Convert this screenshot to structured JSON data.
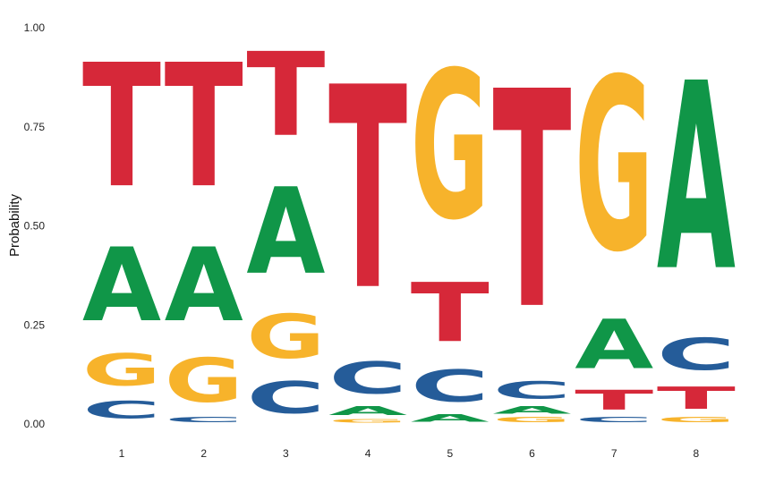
{
  "chart_data": {
    "type": "sequence-logo",
    "title": "",
    "xlabel": "",
    "ylabel": "Probability",
    "ylim": [
      0,
      1
    ],
    "yticks": [
      "0.00",
      "0.25",
      "0.50",
      "0.75",
      "1.00"
    ],
    "ytick_values": [
      0,
      0.25,
      0.5,
      0.75,
      1
    ],
    "grid": false,
    "colors": {
      "A": "#109648",
      "C": "#255C99",
      "G": "#F7B32B",
      "T": "#D62839"
    },
    "positions": [
      {
        "label": "1",
        "letters": [
          {
            "base": "C",
            "p": 0.07
          },
          {
            "base": "G",
            "p": 0.13
          },
          {
            "base": "A",
            "p": 0.3
          },
          {
            "base": "T",
            "p": 0.5
          }
        ]
      },
      {
        "label": "2",
        "letters": [
          {
            "base": "C",
            "p": 0.02
          },
          {
            "base": "G",
            "p": 0.18
          },
          {
            "base": "A",
            "p": 0.3
          },
          {
            "base": "T",
            "p": 0.5
          }
        ]
      },
      {
        "label": "3",
        "letters": [
          {
            "base": "C",
            "p": 0.13
          },
          {
            "base": "G",
            "p": 0.18
          },
          {
            "base": "A",
            "p": 0.35
          },
          {
            "base": "T",
            "p": 0.34
          }
        ]
      },
      {
        "label": "4",
        "letters": [
          {
            "base": "G",
            "p": 0.015
          },
          {
            "base": "A",
            "p": 0.035
          },
          {
            "base": "C",
            "p": 0.13
          },
          {
            "base": "T",
            "p": 0.82
          }
        ]
      },
      {
        "label": "5",
        "letters": [
          {
            "base": "A",
            "p": 0.03
          },
          {
            "base": "C",
            "p": 0.13
          },
          {
            "base": "T",
            "p": 0.24
          },
          {
            "base": "G",
            "p": 0.6
          }
        ]
      },
      {
        "label": "6",
        "letters": [
          {
            "base": "G",
            "p": 0.02
          },
          {
            "base": "A",
            "p": 0.03
          },
          {
            "base": "C",
            "p": 0.07
          },
          {
            "base": "T",
            "p": 0.88
          }
        ]
      },
      {
        "label": "7",
        "letters": [
          {
            "base": "C",
            "p": 0.02
          },
          {
            "base": "T",
            "p": 0.08
          },
          {
            "base": "A",
            "p": 0.2
          },
          {
            "base": "G",
            "p": 0.7
          }
        ]
      },
      {
        "label": "8",
        "letters": [
          {
            "base": "G",
            "p": 0.02
          },
          {
            "base": "T",
            "p": 0.09
          },
          {
            "base": "C",
            "p": 0.13
          },
          {
            "base": "A",
            "p": 0.76
          }
        ]
      }
    ]
  }
}
